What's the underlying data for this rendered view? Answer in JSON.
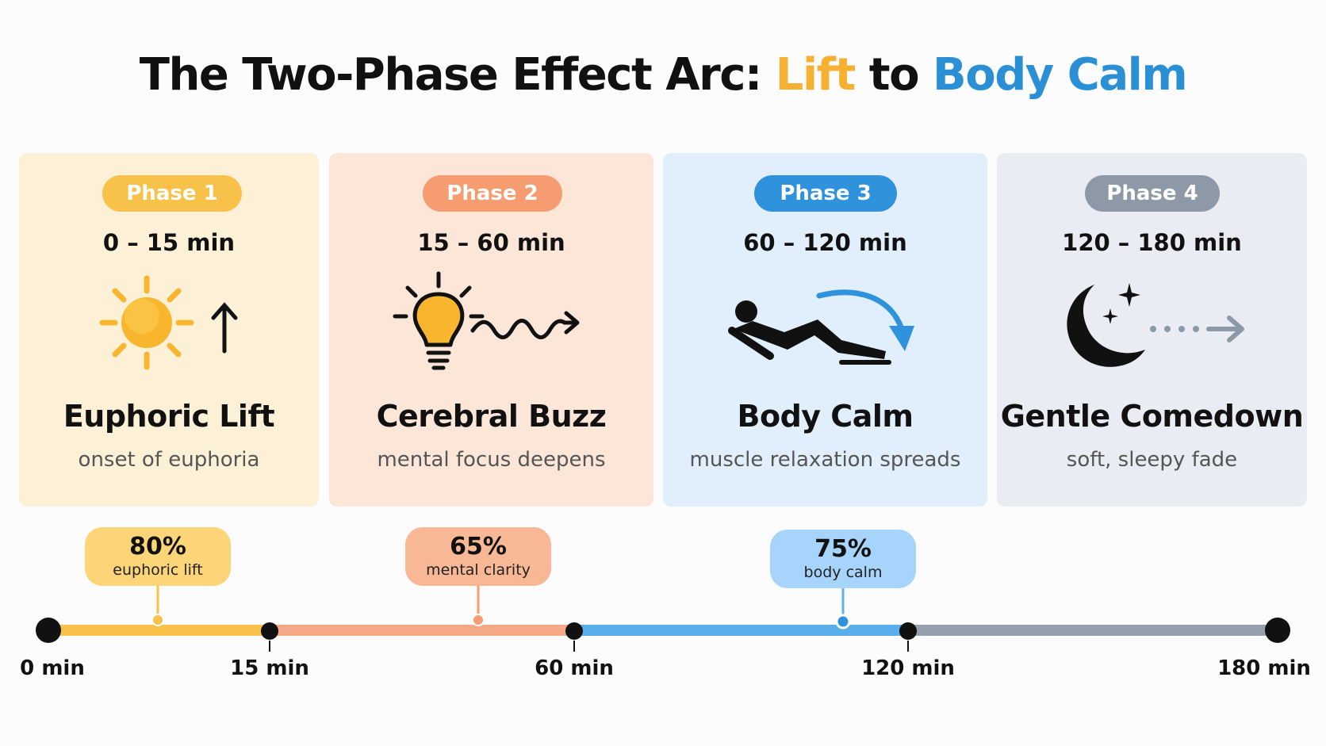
{
  "title": {
    "part1": "The Two-Phase Effect Arc: ",
    "highlight1": "Lift",
    "part2": " to ",
    "highlight2": "Body Calm"
  },
  "colors": {
    "phase1": "#f8c24a",
    "phase2": "#f59c70",
    "phase3": "#2f92dc",
    "phase4": "#8e99a8"
  },
  "phases": [
    {
      "pill": "Phase 1",
      "range": "0 – 15 min",
      "icon": "sun-up-arrow-icon",
      "name": "Euphoric Lift",
      "desc": "onset of euphoria"
    },
    {
      "pill": "Phase 2",
      "range": "15 – 60 min",
      "icon": "lightbulb-wave-icon",
      "name": "Cerebral Buzz",
      "desc": "mental focus deepens"
    },
    {
      "pill": "Phase 3",
      "range": "60 – 120 min",
      "icon": "reclining-person-icon",
      "name": "Body Calm",
      "desc": "muscle relaxation spreads"
    },
    {
      "pill": "Phase 4",
      "range": "120 – 180 min",
      "icon": "moon-stars-icon",
      "name": "Gentle Comedown",
      "desc": "soft, sleepy fade"
    }
  ],
  "peaks": [
    {
      "value": "80%",
      "label": "euphoric lift"
    },
    {
      "value": "65%",
      "label": "mental clarity"
    },
    {
      "value": "75%",
      "label": "body calm"
    }
  ],
  "timeline": {
    "ticks": [
      "0 min",
      "15 min",
      "60 min",
      "120 min",
      "180 min"
    ]
  }
}
